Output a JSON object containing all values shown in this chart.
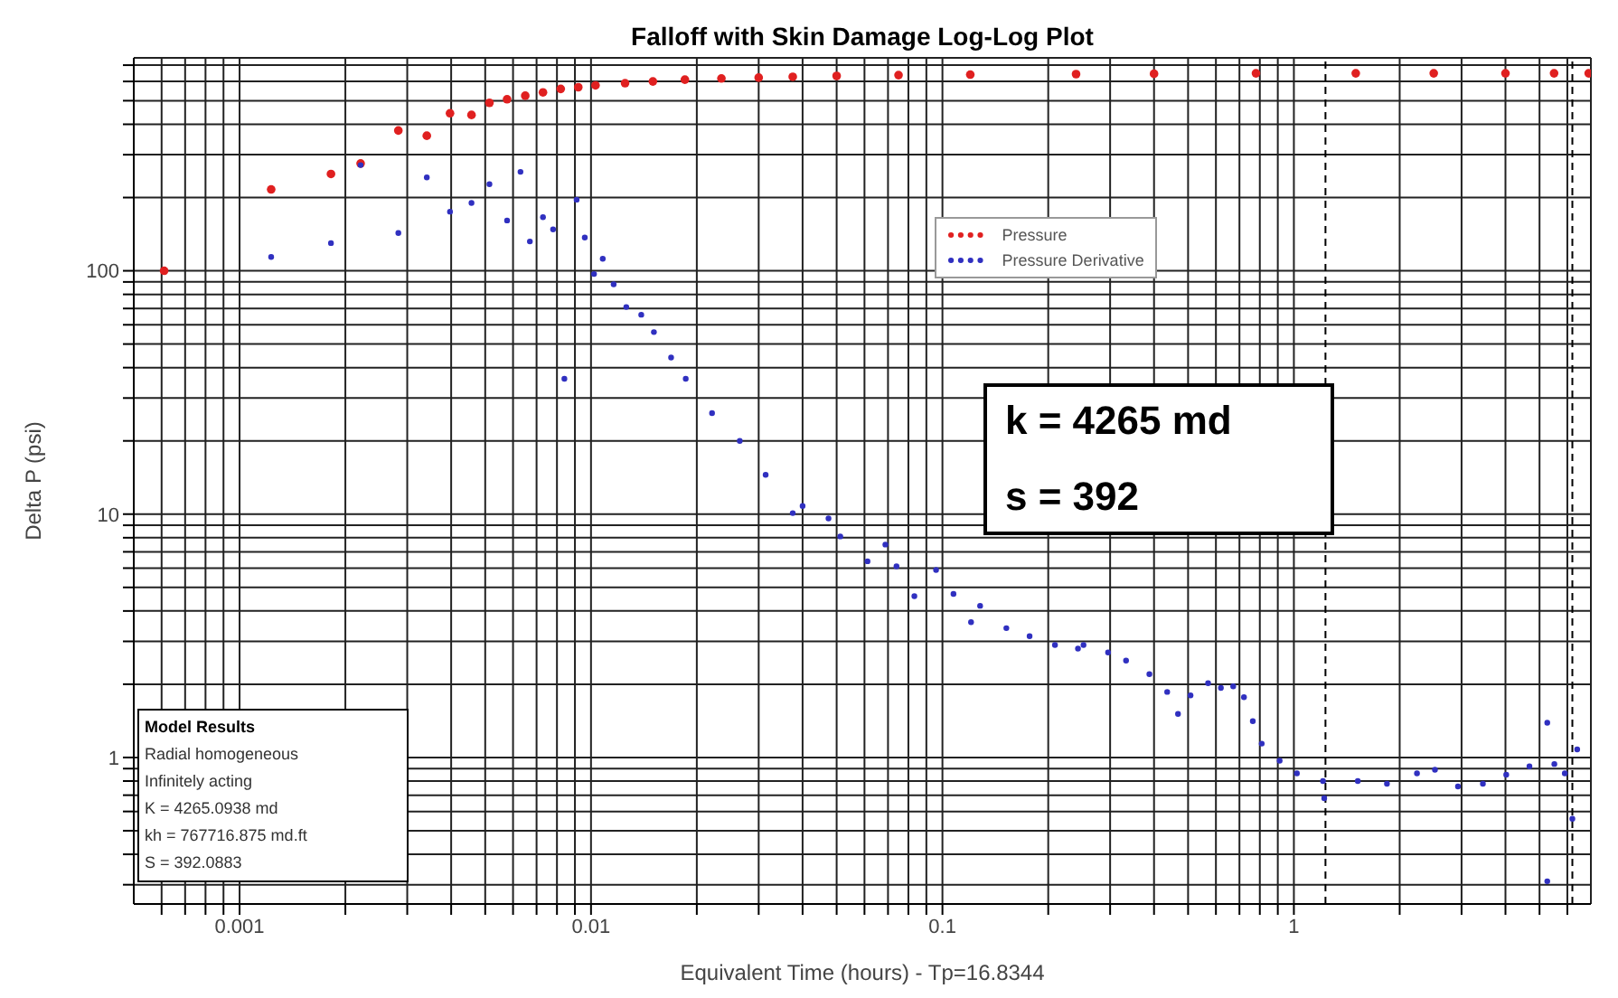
{
  "chart_data": {
    "type": "scatter",
    "title": "Falloff with Skin Damage Log-Log Plot",
    "xlabel": "Equivalent Time (hours) - Tp=16.8344",
    "ylabel": "Delta P (psi)",
    "log": "xy",
    "grid": true,
    "legend": "top",
    "marker": "circle",
    "xlim": [
      0.0005,
      7
    ],
    "ylim": [
      0.25,
      750
    ],
    "xticks": [
      {
        "value": 0.0006,
        "label": null
      },
      {
        "value": 0.0007,
        "label": null
      },
      {
        "value": 0.0008,
        "label": null
      },
      {
        "value": 0.0009,
        "label": null
      },
      0.001,
      {
        "value": 0.002,
        "label": null
      },
      {
        "value": 0.003,
        "label": null
      },
      {
        "value": 0.004,
        "label": null
      },
      {
        "value": 0.005,
        "label": null
      },
      {
        "value": 0.006,
        "label": null
      },
      {
        "value": 0.007,
        "label": null
      },
      {
        "value": 0.008,
        "label": null
      },
      {
        "value": 0.009,
        "label": null
      },
      0.01,
      {
        "value": 0.02,
        "label": null
      },
      {
        "value": 0.03,
        "label": null
      },
      {
        "value": 0.04,
        "label": null
      },
      {
        "value": 0.05,
        "label": null
      },
      {
        "value": 0.06,
        "label": null
      },
      {
        "value": 0.07,
        "label": null
      },
      {
        "value": 0.08,
        "label": null
      },
      {
        "value": 0.09,
        "label": null
      },
      0.1,
      {
        "value": 0.2,
        "label": null
      },
      {
        "value": 0.3,
        "label": null
      },
      {
        "value": 0.4,
        "label": null
      },
      {
        "value": 0.5,
        "label": null
      },
      {
        "value": 0.6,
        "label": null
      },
      {
        "value": 0.7,
        "label": null
      },
      {
        "value": 0.8,
        "label": null
      },
      {
        "value": 0.9,
        "label": null
      },
      1,
      {
        "value": 2,
        "label": null
      },
      {
        "value": 3,
        "label": null
      },
      {
        "value": 4,
        "label": null
      },
      {
        "value": 5,
        "label": null
      },
      {
        "value": 6,
        "label": null
      }
    ],
    "yticks": [
      {
        "value": 0.3,
        "label": null
      },
      {
        "value": 0.4,
        "label": null
      },
      {
        "value": 0.5,
        "label": null
      },
      {
        "value": 0.6,
        "label": null
      },
      {
        "value": 0.7,
        "label": null
      },
      {
        "value": 0.8,
        "label": null
      },
      {
        "value": 0.9,
        "label": null
      },
      1,
      {
        "value": 2,
        "label": null
      },
      {
        "value": 3,
        "label": null
      },
      {
        "value": 4,
        "label": null
      },
      {
        "value": 5,
        "label": null
      },
      {
        "value": 6,
        "label": null
      },
      {
        "value": 7,
        "label": null
      },
      {
        "value": 8,
        "label": null
      },
      {
        "value": 9,
        "label": null
      },
      10,
      {
        "value": 20,
        "label": null
      },
      {
        "value": 30,
        "label": null
      },
      {
        "value": 40,
        "label": null
      },
      {
        "value": 50,
        "label": null
      },
      {
        "value": 60,
        "label": null
      },
      {
        "value": 70,
        "label": null
      },
      {
        "value": 80,
        "label": null
      },
      {
        "value": 90,
        "label": null
      },
      100,
      {
        "value": 200,
        "label": null
      },
      {
        "value": 300,
        "label": null
      },
      {
        "value": 400,
        "label": null
      },
      {
        "value": 500,
        "label": null
      },
      {
        "value": 600,
        "label": null
      },
      {
        "value": 700,
        "label": null
      }
    ],
    "ref_lines": [
      {
        "axis": "x",
        "value": 1.23,
        "color": "#000000",
        "line_style": "dashed"
      },
      {
        "axis": "x",
        "value": 6.2,
        "color": "#000000",
        "line_style": "dashed"
      }
    ],
    "annotations": [
      "k = 4265 md",
      "s = 392",
      "Model Results",
      "Radial homogeneous",
      "Infinitely acting",
      "K = 4265.0938 md",
      "kh = 767716.875 md.ft",
      "S = 392.0883"
    ],
    "series": [
      {
        "name": "Pressure",
        "color": "#e02020",
        "x": [
          0.00061,
          0.00123,
          0.00182,
          0.00221,
          0.00283,
          0.00341,
          0.00397,
          0.00457,
          0.00514,
          0.00577,
          0.0065,
          0.0073,
          0.0082,
          0.0092,
          0.0103,
          0.0125,
          0.015,
          0.0185,
          0.0235,
          0.03,
          0.0375,
          0.05,
          0.075,
          0.12,
          0.24,
          0.4,
          0.78,
          1.5,
          2.5,
          4,
          5.5,
          6.9
        ],
        "values": [
          100,
          216,
          250,
          276,
          377,
          359,
          444,
          437,
          490,
          507,
          524,
          541,
          559,
          568,
          578,
          590,
          600,
          610,
          617,
          622,
          627,
          632,
          637,
          640,
          643,
          645,
          648,
          648,
          648,
          648,
          648,
          648
        ]
      },
      {
        "name": "Pressure Derivative",
        "color": "#3030c0",
        "x": [
          0.00123,
          0.00182,
          0.00221,
          0.00283,
          0.00341,
          0.00397,
          0.00457,
          0.00514,
          0.00577,
          0.0063,
          0.0067,
          0.0073,
          0.0078,
          0.0084,
          0.0091,
          0.0096,
          0.0102,
          0.0108,
          0.0116,
          0.0126,
          0.0139,
          0.0151,
          0.0169,
          0.0186,
          0.0221,
          0.0265,
          0.0314,
          0.0375,
          0.04,
          0.0474,
          0.0512,
          0.0612,
          0.0688,
          0.074,
          0.0832,
          0.0959,
          0.1075,
          0.1206,
          0.128,
          0.152,
          0.177,
          0.209,
          0.243,
          0.252,
          0.296,
          0.333,
          0.388,
          0.436,
          0.468,
          0.508,
          0.57,
          0.62,
          0.672,
          0.721,
          0.764,
          0.81,
          0.911,
          1.02,
          1.21,
          1.22,
          1.52,
          1.84,
          2.24,
          2.52,
          2.93,
          3.45,
          4.02,
          4.68,
          5.26,
          5.26,
          5.51,
          5.9,
          6.2,
          6.4
        ],
        "values": [
          114,
          130,
          272,
          143,
          242,
          175,
          190,
          227,
          161,
          255,
          132,
          166,
          148,
          36,
          196,
          137,
          97,
          112,
          88,
          71,
          66,
          56,
          44,
          36,
          26,
          20,
          14.5,
          10.1,
          10.8,
          9.6,
          8.1,
          6.4,
          7.5,
          6.1,
          4.6,
          5.9,
          4.7,
          3.6,
          4.2,
          3.4,
          3.15,
          2.9,
          2.8,
          2.9,
          2.7,
          2.5,
          2.2,
          1.86,
          1.51,
          1.8,
          2.02,
          1.93,
          1.96,
          1.77,
          1.41,
          1.14,
          0.97,
          0.86,
          0.8,
          0.68,
          0.8,
          0.78,
          0.86,
          0.89,
          0.76,
          0.78,
          0.85,
          0.92,
          1.39,
          0.31,
          0.94,
          0.86,
          0.56,
          1.08
        ]
      }
    ]
  }
}
